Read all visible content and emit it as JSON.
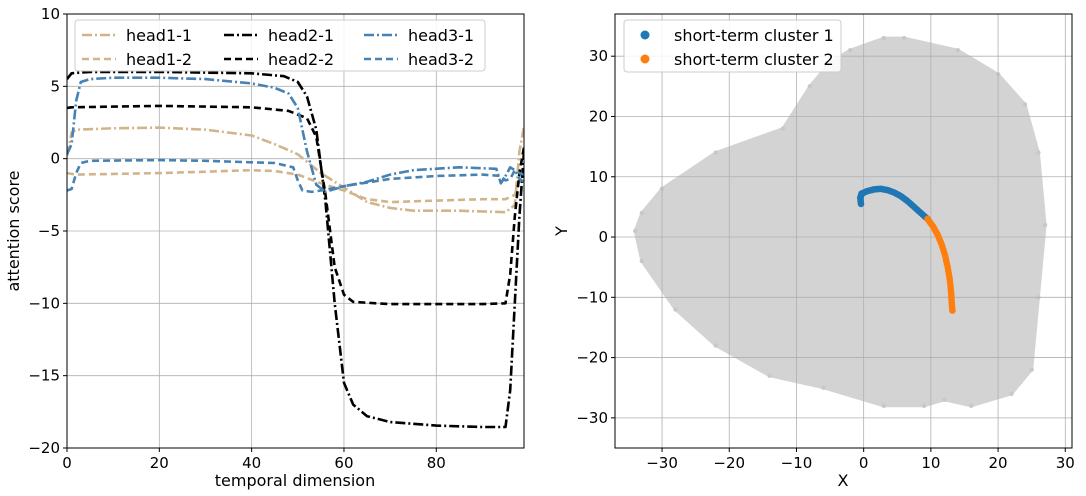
{
  "chart_data": [
    {
      "type": "line",
      "xlabel": "temporal dimension",
      "ylabel": "attention score",
      "xlim": [
        0,
        99
      ],
      "ylim": [
        -20,
        10
      ],
      "xticks": [
        0,
        20,
        40,
        60,
        80
      ],
      "yticks": [
        -20,
        -15,
        -10,
        -5,
        0,
        5,
        10
      ],
      "grid": true,
      "legend": "upper-left, 3 columns",
      "series": [
        {
          "name": "head1-1",
          "color": "#d2b48c",
          "dash": "dashdot",
          "points": [
            [
              0,
              0.2
            ],
            [
              1,
              1.8
            ],
            [
              2,
              2.0
            ],
            [
              10,
              2.1
            ],
            [
              20,
              2.15
            ],
            [
              30,
              2.0
            ],
            [
              40,
              1.6
            ],
            [
              45,
              1.0
            ],
            [
              50,
              0.3
            ],
            [
              55,
              -1.0
            ],
            [
              58,
              -1.6
            ],
            [
              60,
              -2.0
            ],
            [
              65,
              -3.0
            ],
            [
              70,
              -3.4
            ],
            [
              75,
              -3.6
            ],
            [
              85,
              -3.6
            ],
            [
              95,
              -3.7
            ],
            [
              97,
              -3.2
            ],
            [
              98,
              0.5
            ],
            [
              99,
              2.2
            ]
          ]
        },
        {
          "name": "head1-2",
          "color": "#d2b48c",
          "dash": "dashed",
          "points": [
            [
              0,
              -1.0
            ],
            [
              2,
              -1.1
            ],
            [
              10,
              -1.05
            ],
            [
              20,
              -1.0
            ],
            [
              30,
              -0.9
            ],
            [
              40,
              -0.8
            ],
            [
              45,
              -0.85
            ],
            [
              50,
              -1.1
            ],
            [
              55,
              -1.7
            ],
            [
              60,
              -2.2
            ],
            [
              65,
              -2.8
            ],
            [
              70,
              -3.0
            ],
            [
              80,
              -2.9
            ],
            [
              90,
              -2.8
            ],
            [
              95,
              -2.8
            ],
            [
              97,
              -2.5
            ],
            [
              98,
              -1.5
            ],
            [
              99,
              -1.0
            ]
          ]
        },
        {
          "name": "head2-1",
          "color": "#000000",
          "dash": "dashdot",
          "points": [
            [
              0,
              5.5
            ],
            [
              1,
              5.9
            ],
            [
              5,
              6.0
            ],
            [
              20,
              6.0
            ],
            [
              40,
              5.9
            ],
            [
              47,
              5.7
            ],
            [
              50,
              5.3
            ],
            [
              52,
              4.3
            ],
            [
              54,
              2.0
            ],
            [
              56,
              -3.0
            ],
            [
              58,
              -10.0
            ],
            [
              60,
              -15.5
            ],
            [
              62,
              -17.0
            ],
            [
              65,
              -17.8
            ],
            [
              70,
              -18.2
            ],
            [
              80,
              -18.45
            ],
            [
              90,
              -18.55
            ],
            [
              95,
              -18.55
            ],
            [
              96,
              -16.0
            ],
            [
              97,
              -10.0
            ],
            [
              98,
              -4.0
            ],
            [
              99,
              0.5
            ]
          ]
        },
        {
          "name": "head2-2",
          "color": "#000000",
          "dash": "dashed",
          "points": [
            [
              0,
              3.5
            ],
            [
              1,
              3.55
            ],
            [
              10,
              3.6
            ],
            [
              20,
              3.65
            ],
            [
              40,
              3.55
            ],
            [
              48,
              3.3
            ],
            [
              52,
              2.8
            ],
            [
              54,
              1.5
            ],
            [
              56,
              -2.5
            ],
            [
              58,
              -7.5
            ],
            [
              60,
              -9.4
            ],
            [
              62,
              -9.9
            ],
            [
              70,
              -10.05
            ],
            [
              90,
              -10.05
            ],
            [
              95,
              -10.0
            ],
            [
              96,
              -8.0
            ],
            [
              97,
              -4.0
            ],
            [
              98,
              -1.0
            ],
            [
              99,
              0.8
            ]
          ]
        },
        {
          "name": "head3-1",
          "color": "#4682b4",
          "dash": "dashdot",
          "points": [
            [
              0,
              0.3
            ],
            [
              1,
              1.0
            ],
            [
              2,
              4.0
            ],
            [
              3,
              5.3
            ],
            [
              5,
              5.5
            ],
            [
              10,
              5.6
            ],
            [
              20,
              5.6
            ],
            [
              30,
              5.5
            ],
            [
              40,
              5.2
            ],
            [
              45,
              4.9
            ],
            [
              48,
              4.5
            ],
            [
              50,
              3.5
            ],
            [
              52,
              0.5
            ],
            [
              54,
              -1.8
            ],
            [
              56,
              -2.3
            ],
            [
              58,
              -2.1
            ],
            [
              60,
              -1.9
            ],
            [
              65,
              -1.6
            ],
            [
              70,
              -1.1
            ],
            [
              75,
              -0.8
            ],
            [
              85,
              -0.6
            ],
            [
              93,
              -0.7
            ],
            [
              94,
              -1.7
            ],
            [
              95,
              -1.2
            ],
            [
              96,
              -0.6
            ],
            [
              97,
              -0.8
            ],
            [
              98,
              -1.4
            ],
            [
              99,
              -1.6
            ]
          ]
        },
        {
          "name": "head3-2",
          "color": "#4682b4",
          "dash": "dashed",
          "points": [
            [
              0,
              -2.2
            ],
            [
              1,
              -2.1
            ],
            [
              2,
              -1.0
            ],
            [
              3,
              -0.3
            ],
            [
              5,
              -0.15
            ],
            [
              20,
              -0.1
            ],
            [
              30,
              -0.15
            ],
            [
              40,
              -0.25
            ],
            [
              45,
              -0.3
            ],
            [
              49,
              -0.6
            ],
            [
              50,
              -1.5
            ],
            [
              51,
              -2.2
            ],
            [
              53,
              -2.3
            ],
            [
              55,
              -2.2
            ],
            [
              60,
              -1.9
            ],
            [
              70,
              -1.4
            ],
            [
              80,
              -1.2
            ],
            [
              90,
              -1.1
            ],
            [
              94,
              -1.2
            ],
            [
              95,
              -1.5
            ],
            [
              96,
              -1.4
            ],
            [
              97,
              -0.8
            ],
            [
              98,
              -1.0
            ],
            [
              99,
              -1.1
            ]
          ]
        }
      ]
    },
    {
      "type": "scatter",
      "xlabel": "X",
      "ylabel": "Y",
      "xlim": [
        -37,
        31
      ],
      "ylim": [
        -35,
        37
      ],
      "xticks": [
        -30,
        -20,
        -10,
        0,
        10,
        20,
        30
      ],
      "yticks": [
        -30,
        -20,
        -10,
        0,
        10,
        20,
        30
      ],
      "grid": true,
      "legend": "upper-left",
      "background_trajectories": {
        "color": "#d3d3d3",
        "outline": [
          [
            -33,
            4
          ],
          [
            -30,
            8
          ],
          [
            -22,
            14
          ],
          [
            -12,
            18
          ],
          [
            -8,
            25
          ],
          [
            -5,
            29
          ],
          [
            -2,
            31
          ],
          [
            3,
            33
          ],
          [
            6,
            33
          ],
          [
            14,
            31
          ],
          [
            20,
            27
          ],
          [
            24,
            22
          ],
          [
            26,
            14
          ],
          [
            27,
            2
          ],
          [
            26,
            -10
          ],
          [
            25,
            -22
          ],
          [
            22,
            -26
          ],
          [
            16,
            -28
          ],
          [
            12,
            -27
          ],
          [
            9,
            -28
          ],
          [
            3,
            -28
          ],
          [
            -6,
            -25
          ],
          [
            -14,
            -23
          ],
          [
            -22,
            -18
          ],
          [
            -28,
            -12
          ],
          [
            -33,
            -4
          ],
          [
            -34,
            1
          ]
        ]
      },
      "series": [
        {
          "name": "short-term cluster 1",
          "color": "#1f77b4",
          "points": [
            [
              -0.4,
              5.5
            ],
            [
              -0.5,
              6.5
            ],
            [
              -0.3,
              7.2
            ],
            [
              0.5,
              7.6
            ],
            [
              1.5,
              7.9
            ],
            [
              2.5,
              8.0
            ],
            [
              3.5,
              7.8
            ],
            [
              4.5,
              7.4
            ],
            [
              5.5,
              6.8
            ],
            [
              6.5,
              6.0
            ],
            [
              7.5,
              5.0
            ],
            [
              8.5,
              4.0
            ],
            [
              9.5,
              3.0
            ]
          ]
        },
        {
          "name": "short-term cluster 2",
          "color": "#ff7f0e",
          "points": [
            [
              9.5,
              3.0
            ],
            [
              10.3,
              1.8
            ],
            [
              11.0,
              0.4
            ],
            [
              11.6,
              -1.2
            ],
            [
              12.1,
              -3.0
            ],
            [
              12.5,
              -5.0
            ],
            [
              12.8,
              -7.0
            ],
            [
              13.0,
              -9.0
            ],
            [
              13.1,
              -10.8
            ],
            [
              13.2,
              -12.2
            ]
          ]
        }
      ]
    }
  ]
}
